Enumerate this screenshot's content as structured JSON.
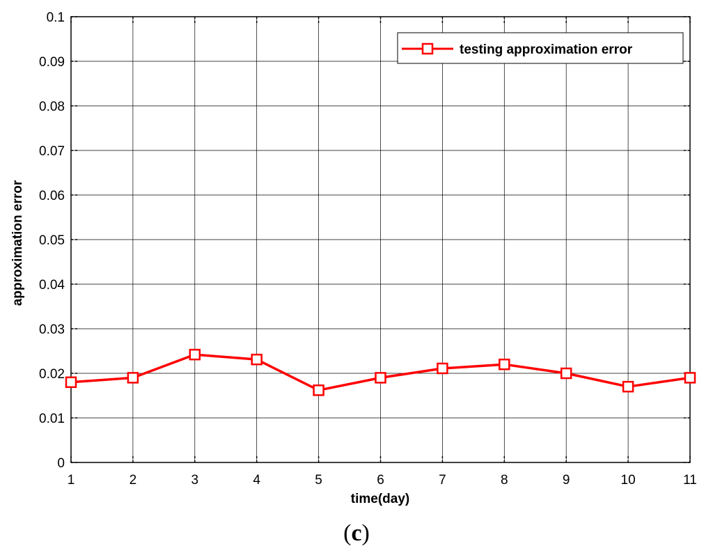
{
  "chart_data": {
    "type": "line",
    "title": "",
    "xlabel": "time(day)",
    "ylabel": "approximation error",
    "xlim": [
      1,
      11
    ],
    "ylim": [
      0,
      0.1
    ],
    "x_ticks": [
      1,
      2,
      3,
      4,
      5,
      6,
      7,
      8,
      9,
      10,
      11
    ],
    "y_ticks": [
      0,
      0.01,
      0.02,
      0.03,
      0.04,
      0.05,
      0.06,
      0.07,
      0.08,
      0.09,
      0.1
    ],
    "y_tick_labels": [
      "0",
      "0.01",
      "0.02",
      "0.03",
      "0.04",
      "0.05",
      "0.06",
      "0.07",
      "0.08",
      "0.09",
      "0.1"
    ],
    "grid": true,
    "legend_position": "top-right",
    "series": [
      {
        "name": "testing approximation error",
        "color": "#ff0000",
        "marker": "square",
        "x": [
          1,
          2,
          3,
          4,
          5,
          6,
          7,
          8,
          9,
          10,
          11
        ],
        "y": [
          0.018,
          0.019,
          0.0242,
          0.0231,
          0.0162,
          0.019,
          0.0211,
          0.022,
          0.02,
          0.017,
          0.019
        ]
      }
    ]
  },
  "caption": {
    "open": "(",
    "letter": "c",
    "close": ")"
  }
}
